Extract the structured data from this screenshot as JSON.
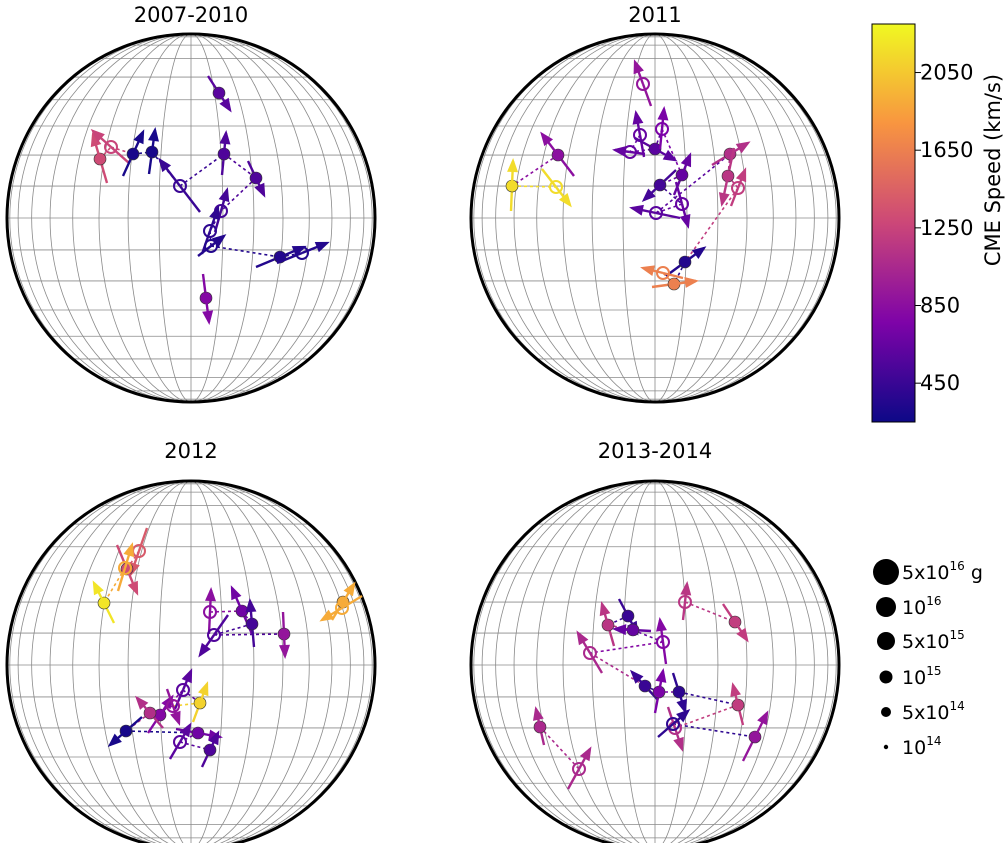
{
  "chart_data": {
    "type": "scatter",
    "panels": [
      {
        "title": "2007-2010",
        "events": [
          {
            "from": [
              219,
              93
            ],
            "to": [
              230,
              110
            ],
            "speed": 600,
            "open": false
          },
          {
            "from": [
              100,
              159
            ],
            "to": [
              93,
              135
            ],
            "speed": 1300,
            "open": false
          },
          {
            "from": [
              111,
              147
            ],
            "to": [
              93,
              131
            ],
            "speed": 1250,
            "open": true
          },
          {
            "from": [
              133,
              154
            ],
            "to": [
              143,
              132
            ],
            "speed": 300,
            "open": false
          },
          {
            "from": [
              152,
              152
            ],
            "to": [
              155,
              130
            ],
            "speed": 300,
            "open": false
          },
          {
            "from": [
              180,
              186
            ],
            "to": [
              160,
              160
            ],
            "speed": 450,
            "open": true
          },
          {
            "from": [
              224,
              154
            ],
            "to": [
              226,
              133
            ],
            "speed": 550,
            "open": false
          },
          {
            "from": [
              256,
              178
            ],
            "to": [
              264,
              195
            ],
            "speed": 550,
            "open": false
          },
          {
            "from": [
              221,
              211
            ],
            "to": [
              227,
              190
            ],
            "speed": 500,
            "open": true
          },
          {
            "from": [
              210,
              231
            ],
            "to": [
              218,
              208
            ],
            "speed": 400,
            "open": true
          },
          {
            "from": [
              211,
              246
            ],
            "to": [
              224,
              236
            ],
            "speed": 350,
            "open": true
          },
          {
            "from": [
              280,
              257
            ],
            "to": [
              304,
              247
            ],
            "speed": 350,
            "open": false
          },
          {
            "from": [
              302,
              253
            ],
            "to": [
              327,
              243
            ],
            "speed": 350,
            "open": true
          },
          {
            "from": [
              206,
              298
            ],
            "to": [
              209,
              322
            ],
            "speed": 800,
            "open": false
          }
        ]
      },
      {
        "title": "2011",
        "events": [
          {
            "from": [
              643,
              84
            ],
            "to": [
              635,
              62
            ],
            "speed": 900,
            "open": true
          },
          {
            "from": [
              558,
              155
            ],
            "to": [
              542,
              134
            ],
            "speed": 850,
            "open": false
          },
          {
            "from": [
              512,
              186
            ],
            "to": [
              513,
              161
            ],
            "speed": 2150,
            "open": false
          },
          {
            "from": [
              556,
              187
            ],
            "to": [
              570,
              205
            ],
            "speed": 2150,
            "open": true
          },
          {
            "from": [
              640,
              135
            ],
            "to": [
              636,
              113
            ],
            "speed": 650,
            "open": true
          },
          {
            "from": [
              630,
              152
            ],
            "to": [
              615,
              150
            ],
            "speed": 650,
            "open": true
          },
          {
            "from": [
              655,
              149
            ],
            "to": [
              675,
              160
            ],
            "speed": 600,
            "open": false
          },
          {
            "from": [
              662,
              129
            ],
            "to": [
              664,
              109
            ],
            "speed": 750,
            "open": true
          },
          {
            "from": [
              682,
              175
            ],
            "to": [
              690,
              155
            ],
            "speed": 650,
            "open": false
          },
          {
            "from": [
              660,
              185
            ],
            "to": [
              644,
              200
            ],
            "speed": 500,
            "open": false
          },
          {
            "from": [
              682,
              204
            ],
            "to": [
              688,
              226
            ],
            "speed": 650,
            "open": true
          },
          {
            "from": [
              656,
              213
            ],
            "to": [
              632,
              208
            ],
            "speed": 600,
            "open": true
          },
          {
            "from": [
              730,
              154
            ],
            "to": [
              748,
              143
            ],
            "speed": 1100,
            "open": false
          },
          {
            "from": [
              728,
              176
            ],
            "to": [
              722,
              204
            ],
            "speed": 1150,
            "open": false
          },
          {
            "from": [
              738,
              188
            ],
            "to": [
              745,
              170
            ],
            "speed": 1200,
            "open": true
          },
          {
            "from": [
              685,
              262
            ],
            "to": [
              704,
              248
            ],
            "speed": 350,
            "open": false
          },
          {
            "from": [
              674,
              284
            ],
            "to": [
              696,
              281
            ],
            "speed": 1650,
            "open": false
          },
          {
            "from": [
              663,
              273
            ],
            "to": [
              643,
              268
            ],
            "speed": 1650,
            "open": true
          }
        ]
      },
      {
        "title": "2012",
        "events": [
          {
            "from": [
              139,
              551
            ],
            "to": [
              131,
              574
            ],
            "speed": 1400,
            "open": true
          },
          {
            "from": [
              127,
              569
            ],
            "to": [
              137,
              593
            ],
            "speed": 1300,
            "open": false
          },
          {
            "from": [
              125,
              568
            ],
            "to": [
              132,
              545
            ],
            "speed": 1900,
            "open": true
          },
          {
            "from": [
              104,
              603
            ],
            "to": [
              94,
              583
            ],
            "speed": 2200,
            "open": false
          },
          {
            "from": [
              343,
              602
            ],
            "to": [
              354,
              584
            ],
            "speed": 1900,
            "open": false
          },
          {
            "from": [
              342,
              608
            ],
            "to": [
              322,
              620
            ],
            "speed": 1900,
            "open": true
          },
          {
            "from": [
              210,
              612
            ],
            "to": [
              211,
              590
            ],
            "speed": 850,
            "open": true
          },
          {
            "from": [
              242,
              611
            ],
            "to": [
              232,
              588
            ],
            "speed": 700,
            "open": false
          },
          {
            "from": [
              252,
              624
            ],
            "to": [
              250,
              601
            ],
            "speed": 500,
            "open": false
          },
          {
            "from": [
              214,
              635
            ],
            "to": [
              200,
              655
            ],
            "speed": 550,
            "open": true
          },
          {
            "from": [
              284,
              634
            ],
            "to": [
              285,
              656
            ],
            "speed": 900,
            "open": false
          },
          {
            "from": [
              160,
              715
            ],
            "to": [
              172,
              697
            ],
            "speed": 800,
            "open": false
          },
          {
            "from": [
              183,
              690
            ],
            "to": [
              191,
              671
            ],
            "speed": 600,
            "open": true
          },
          {
            "from": [
              200,
              703
            ],
            "to": [
              207,
              684
            ],
            "speed": 2100,
            "open": false
          },
          {
            "from": [
              173,
              706
            ],
            "to": [
              179,
              723
            ],
            "speed": 900,
            "open": true
          },
          {
            "from": [
              150,
              713
            ],
            "to": [
              137,
              698
            ],
            "speed": 1100,
            "open": false
          },
          {
            "from": [
              126,
              731
            ],
            "to": [
              110,
              745
            ],
            "speed": 300,
            "open": false
          },
          {
            "from": [
              198,
              733
            ],
            "to": [
              220,
              737
            ],
            "speed": 700,
            "open": false
          },
          {
            "from": [
              180,
              742
            ],
            "to": [
              190,
              725
            ],
            "speed": 600,
            "open": true
          },
          {
            "from": [
              210,
              750
            ],
            "to": [
              218,
              733
            ],
            "speed": 550,
            "open": false
          }
        ]
      },
      {
        "title": "2013-2014",
        "events": [
          {
            "from": [
              685,
              602
            ],
            "to": [
              687,
              584
            ],
            "speed": 1150,
            "open": true
          },
          {
            "from": [
              735,
              622
            ],
            "to": [
              747,
              640
            ],
            "speed": 1200,
            "open": false
          },
          {
            "from": [
              628,
              616
            ],
            "to": [
              637,
              633
            ],
            "speed": 450,
            "open": false
          },
          {
            "from": [
              608,
              625
            ],
            "to": [
              602,
              604
            ],
            "speed": 1150,
            "open": false
          },
          {
            "from": [
              633,
              630
            ],
            "to": [
              615,
              629
            ],
            "speed": 650,
            "open": false
          },
          {
            "from": [
              663,
              642
            ],
            "to": [
              660,
              620
            ],
            "speed": 800,
            "open": true
          },
          {
            "from": [
              590,
              653
            ],
            "to": [
              578,
              633
            ],
            "speed": 1050,
            "open": true
          },
          {
            "from": [
              645,
              686
            ],
            "to": [
              632,
              672
            ],
            "speed": 450,
            "open": false
          },
          {
            "from": [
              659,
              692
            ],
            "to": [
              663,
              671
            ],
            "speed": 750,
            "open": false
          },
          {
            "from": [
              679,
              692
            ],
            "to": [
              685,
              711
            ],
            "speed": 400,
            "open": false
          },
          {
            "from": [
              738,
              705
            ],
            "to": [
              733,
              685
            ],
            "speed": 1200,
            "open": false
          },
          {
            "from": [
              675,
              728
            ],
            "to": [
              682,
              749
            ],
            "speed": 1100,
            "open": true
          },
          {
            "from": [
              673,
              724
            ],
            "to": [
              688,
              711
            ],
            "speed": 400,
            "open": true
          },
          {
            "from": [
              755,
              737
            ],
            "to": [
              767,
              713
            ],
            "speed": 900,
            "open": false
          },
          {
            "from": [
              540,
              727
            ],
            "to": [
              536,
              709
            ],
            "speed": 1050,
            "open": false
          },
          {
            "from": [
              579,
              769
            ],
            "to": [
              590,
              749
            ],
            "speed": 1050,
            "open": true
          }
        ]
      }
    ],
    "colorbar": {
      "label": "CME Speed (km/s)",
      "min": 250,
      "max": 2300,
      "ticks": [
        450,
        850,
        1250,
        1650,
        2050
      ],
      "colormap": "plasma"
    },
    "size_legend": [
      {
        "label": "5x10",
        "exp": "16",
        "suffix": " g",
        "mass": 5e+16
      },
      {
        "label": "10",
        "exp": "16",
        "suffix": "",
        "mass": 1e+16
      },
      {
        "label": "5x10",
        "exp": "15",
        "suffix": "",
        "mass": 5000000000000000.0
      },
      {
        "label": "10",
        "exp": "15",
        "suffix": "",
        "mass": 1000000000000000.0
      },
      {
        "label": "5x10",
        "exp": "14",
        "suffix": "",
        "mass": 500000000000000.0
      },
      {
        "label": "10",
        "exp": "14",
        "suffix": "",
        "mass": 100000000000000.0
      }
    ]
  }
}
